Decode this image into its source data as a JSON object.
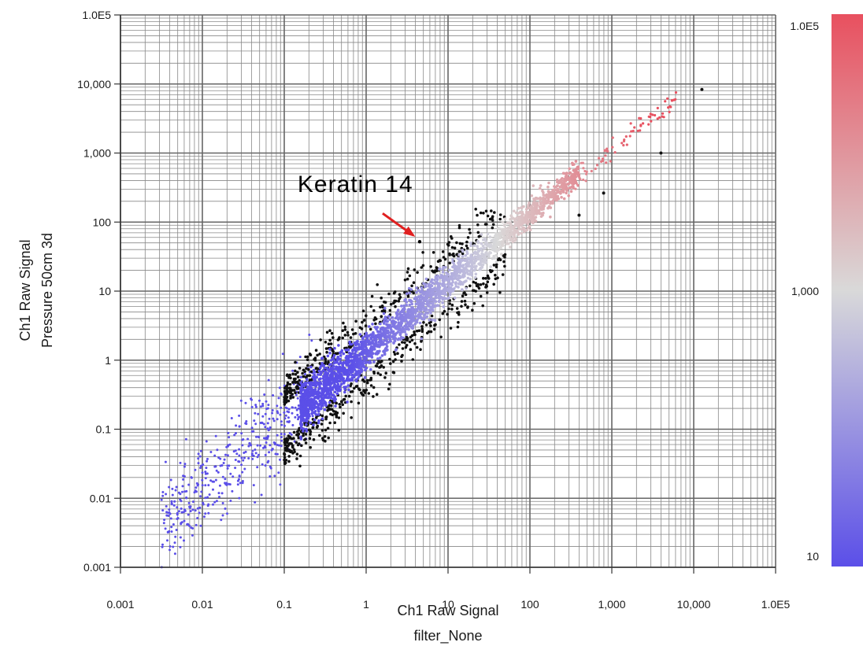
{
  "chart_data": {
    "type": "scatter",
    "x_scale": "log",
    "y_scale": "log",
    "xlim": [
      0.001,
      100000
    ],
    "ylim": [
      0.001,
      100000
    ],
    "grid": true,
    "xlabel": "Ch1 Raw Signal",
    "xlabel_line2": "filter_None",
    "ylabel": "Ch1 Raw Signal",
    "ylabel_line2": "Pressure  50cm 3d",
    "x_tick_labels": [
      "0.001",
      "0.01",
      "0.1",
      "1",
      "10",
      "100",
      "1,000",
      "10,000",
      "1.0E5"
    ],
    "y_tick_labels": [
      "0.001",
      "0.01",
      "0.1",
      "1",
      "10",
      "100",
      "1,000",
      "10,000",
      "1.0E5"
    ],
    "colorbar": {
      "labels": [
        "1.0E5",
        "1,000",
        "10"
      ],
      "colors": [
        "#e8505f",
        "#d9d9d9",
        "#5b4fe8"
      ]
    },
    "point_colors": {
      "within_range": "density-gradient",
      "outlier": "#111111"
    },
    "annotation": {
      "text": "Keratin 14",
      "x": 4.5,
      "y": 52,
      "arrow_color": "#e02020"
    }
  }
}
